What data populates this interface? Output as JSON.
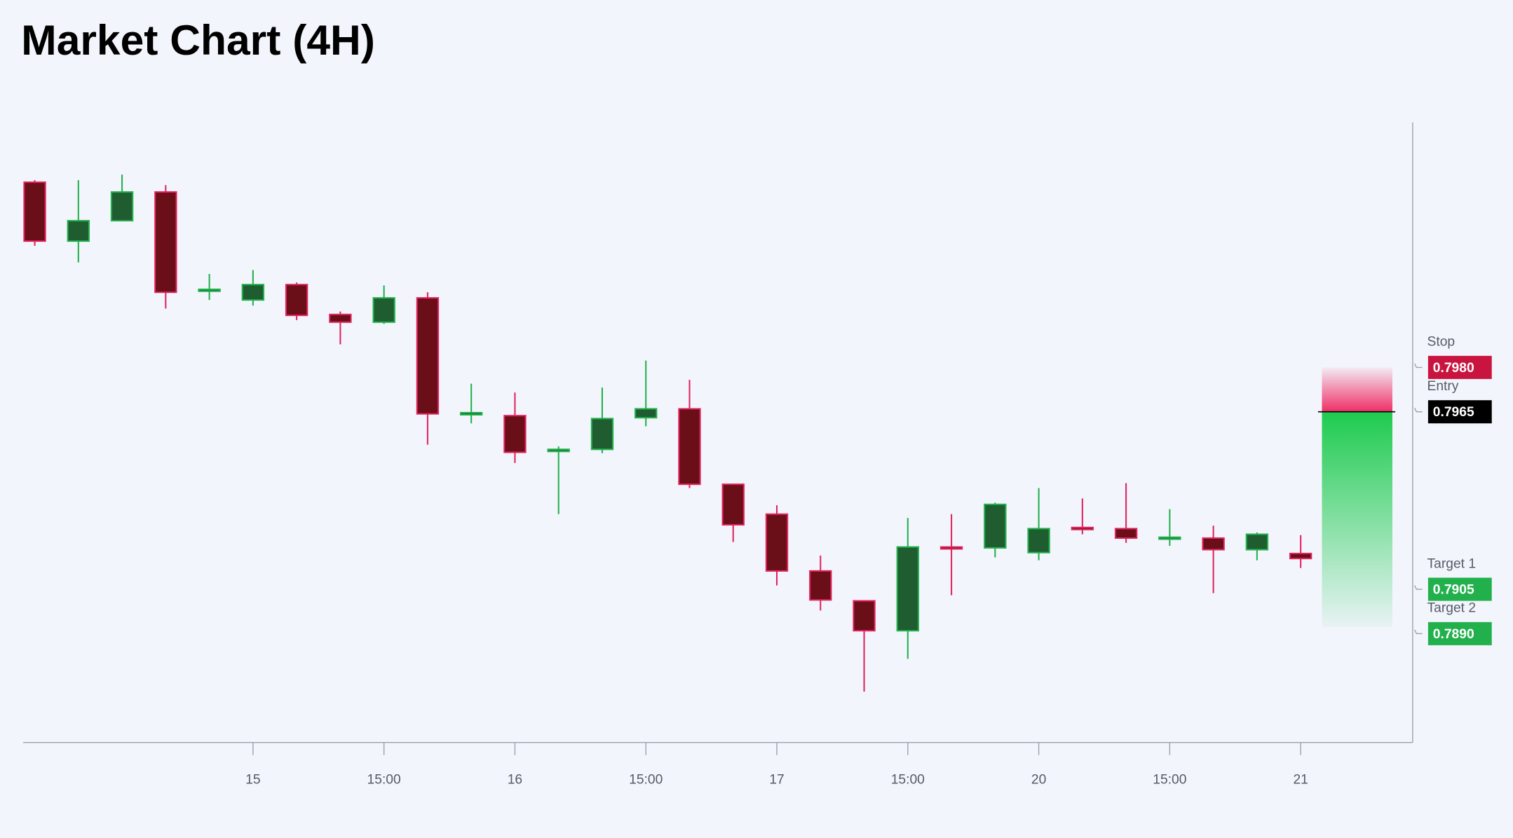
{
  "chart_data": {
    "type": "candlestick",
    "title": "Market Chart (4H)",
    "categories": [
      null,
      null,
      null,
      null,
      null,
      "15",
      null,
      null,
      "15:00",
      null,
      null,
      "16",
      null,
      null,
      "15:00",
      null,
      null,
      "17",
      null,
      null,
      "15:00",
      null,
      null,
      "20",
      null,
      null,
      "15:00",
      null,
      null,
      "21"
    ],
    "open": [
      0.80426,
      0.80227,
      0.80296,
      0.80393,
      0.80058,
      0.80028,
      0.8008,
      0.79979,
      0.79953,
      0.80035,
      0.7964,
      0.79637,
      0.79516,
      0.79523,
      0.7963,
      0.7966,
      0.79405,
      0.79304,
      0.79112,
      0.79011,
      0.7891,
      0.79193,
      0.7919,
      0.79174,
      0.79259,
      0.79255,
      0.7922,
      0.79223,
      0.79184,
      0.79171
    ],
    "high": [
      0.80433,
      0.80433,
      0.80452,
      0.80416,
      0.80116,
      0.80129,
      0.80087,
      0.79989,
      0.80077,
      0.80054,
      0.79745,
      0.79715,
      0.79533,
      0.79732,
      0.79823,
      0.79758,
      0.79405,
      0.79334,
      0.79164,
      0.79011,
      0.79291,
      0.79304,
      0.79343,
      0.79392,
      0.79357,
      0.79409,
      0.79321,
      0.79265,
      0.79242,
      0.79233
    ],
    "low": [
      0.80211,
      0.80155,
      0.80296,
      0.79999,
      0.80028,
      0.80009,
      0.7996,
      0.79878,
      0.79947,
      0.79539,
      0.79611,
      0.79477,
      0.79304,
      0.7951,
      0.79601,
      0.79392,
      0.7921,
      0.79063,
      0.78978,
      0.78704,
      0.78815,
      0.7903,
      0.79158,
      0.79148,
      0.79236,
      0.79207,
      0.79197,
      0.79037,
      0.79148,
      0.79122
    ],
    "close": [
      0.80227,
      0.80296,
      0.80393,
      0.80054,
      0.80064,
      0.8008,
      0.79976,
      0.79953,
      0.80035,
      0.79643,
      0.79647,
      0.79513,
      0.79523,
      0.79627,
      0.7966,
      0.79405,
      0.79268,
      0.79112,
      0.79014,
      0.7891,
      0.79193,
      0.79187,
      0.79337,
      0.79255,
      0.79252,
      0.79223,
      0.79226,
      0.79184,
      0.79236,
      0.79154
    ],
    "up_color": "#22b14c",
    "down_color": "#e0245e",
    "ylim": [
      0.78532,
      0.80628
    ],
    "levels": [
      {
        "name": "Stop",
        "value": 0.798,
        "label": "0.7980",
        "color": "#c8143f"
      },
      {
        "name": "Entry",
        "value": 0.7965,
        "color": "#000000"
      },
      {
        "name": "Target 1",
        "value": 0.7905,
        "label": "0.7905",
        "color": "#22b04c"
      },
      {
        "name": "Target 2",
        "value": 0.789,
        "label": "0.7890",
        "color": "#22b04c"
      }
    ]
  }
}
